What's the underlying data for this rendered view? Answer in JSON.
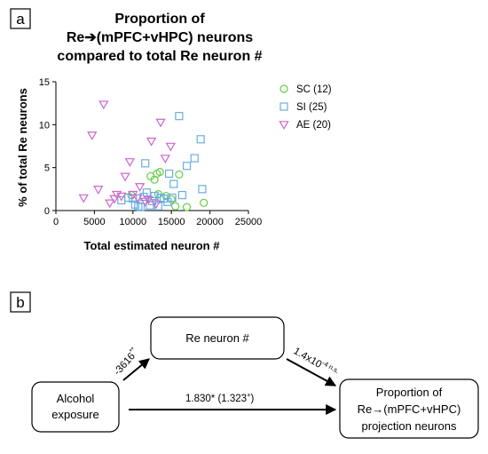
{
  "panel_a": {
    "label": "a",
    "title_line1": "Proportion of",
    "title_line2": "Re➔(mPFC+vHPC) neurons",
    "title_line3": "compared to total Re neuron #"
  },
  "panel_b": {
    "label": "b",
    "box_re": "Re neuron #",
    "box_alcohol_line1": "Alcohol",
    "box_alcohol_line2": "exposure",
    "box_prop_line1": "Proportion of",
    "box_prop_line2": "Re→(mPFC+vHPC)",
    "box_prop_line3": "projection neurons",
    "path_a_value": "-3616",
    "path_a_sup": "**",
    "path_b_value": "1.4x10",
    "path_b_sup": "-4 n.s.",
    "path_c_value": "1.830* (1.323",
    "path_c_sup": "+",
    "path_c_close": ")"
  },
  "chart_data": {
    "type": "scatter",
    "title": "Proportion of Re➔(mPFC+vHPC) neurons compared to total Re neuron #",
    "xlabel": "Total estimated neuron #",
    "ylabel": "% of total Re neurons",
    "xlim": [
      0,
      25000
    ],
    "ylim": [
      0,
      15
    ],
    "xticks": [
      "0",
      "5000",
      "10000",
      "15000",
      "20000",
      "25000"
    ],
    "yticks": [
      "0",
      "5",
      "10",
      "15"
    ],
    "legend_position": "right",
    "series": [
      {
        "name": "SC (12)",
        "marker": "circle",
        "color": "#66cc44",
        "points": [
          [
            9800,
            1.8
          ],
          [
            12300,
            4.0
          ],
          [
            12800,
            3.6
          ],
          [
            13100,
            4.3
          ],
          [
            13300,
            1.9
          ],
          [
            13500,
            4.5
          ],
          [
            14300,
            1.7
          ],
          [
            15000,
            1.3
          ],
          [
            15500,
            0.5
          ],
          [
            16000,
            4.2
          ],
          [
            17000,
            0.4
          ],
          [
            19200,
            0.9
          ]
        ]
      },
      {
        "name": "SI (25)",
        "marker": "square",
        "color": "#6aaee0",
        "points": [
          [
            8500,
            1.2
          ],
          [
            9400,
            1.5
          ],
          [
            10000,
            1.4
          ],
          [
            10300,
            0.7
          ],
          [
            10700,
            0.5
          ],
          [
            11000,
            0.4
          ],
          [
            11400,
            1.6
          ],
          [
            11600,
            5.5
          ],
          [
            11800,
            2.1
          ],
          [
            12200,
            0.6
          ],
          [
            12500,
            1.1
          ],
          [
            12800,
            1.7
          ],
          [
            13300,
            0.5
          ],
          [
            13600,
            1.5
          ],
          [
            14000,
            1.4
          ],
          [
            14500,
            1.0
          ],
          [
            14700,
            4.3
          ],
          [
            15100,
            1.5
          ],
          [
            15300,
            3.1
          ],
          [
            16000,
            11.0
          ],
          [
            16400,
            1.8
          ],
          [
            17000,
            5.2
          ],
          [
            18000,
            6.1
          ],
          [
            18800,
            8.3
          ],
          [
            19000,
            2.5
          ]
        ]
      },
      {
        "name": "AE (20)",
        "marker": "triangle-down",
        "color": "#cc66cc",
        "points": [
          [
            3600,
            1.5
          ],
          [
            4700,
            8.8
          ],
          [
            5500,
            2.5
          ],
          [
            6200,
            12.4
          ],
          [
            7000,
            0.9
          ],
          [
            7600,
            1.4
          ],
          [
            7900,
            1.9
          ],
          [
            8500,
            1.7
          ],
          [
            9000,
            4.0
          ],
          [
            9600,
            5.7
          ],
          [
            10000,
            1.9
          ],
          [
            10600,
            1.5
          ],
          [
            10900,
            2.8
          ],
          [
            11600,
            1.1
          ],
          [
            12000,
            1.3
          ],
          [
            12400,
            8.1
          ],
          [
            13000,
            0.8
          ],
          [
            13600,
            10.3
          ],
          [
            14200,
            6.1
          ],
          [
            14900,
            7.5
          ]
        ]
      }
    ]
  }
}
